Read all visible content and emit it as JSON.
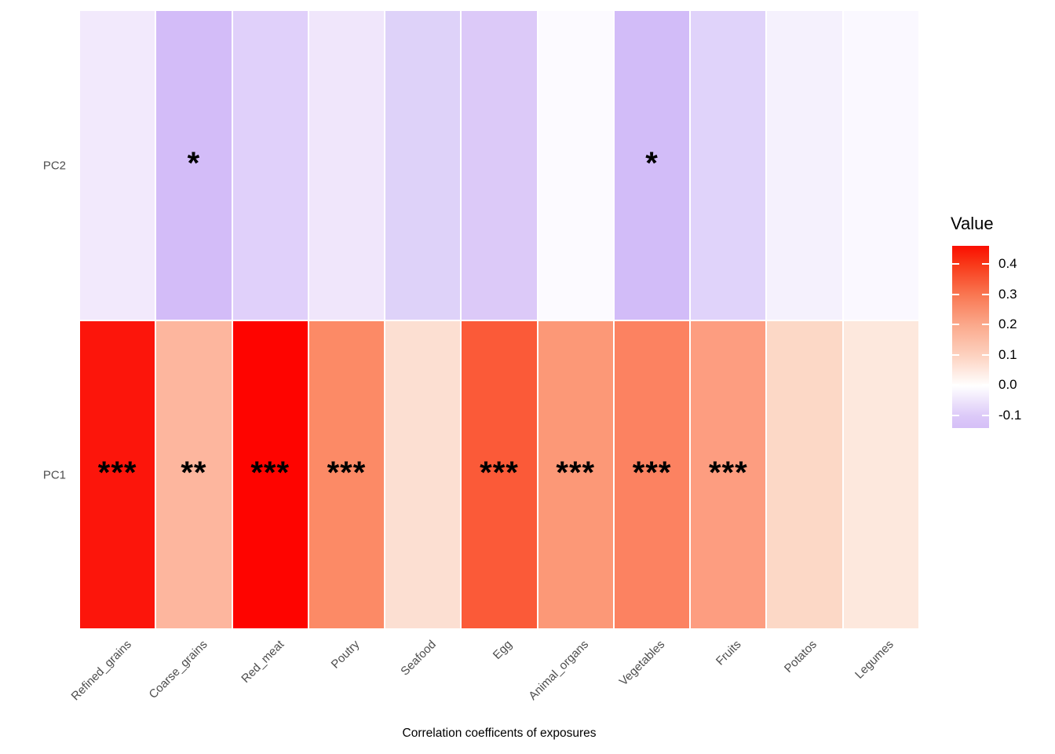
{
  "chart_data": {
    "type": "heatmap",
    "title": "",
    "xlabel": "Correlation coefficents of exposures",
    "ylabel": "",
    "x_categories": [
      "Refined_grains",
      "Coarse_grains",
      "Red_meat",
      "Poutry",
      "Seafood",
      "Egg",
      "Animal_organs",
      "Vegetables",
      "Fruits",
      "Potatos",
      "Legumes"
    ],
    "y_categories": [
      "PC2",
      "PC1"
    ],
    "grid": false,
    "legend_position": "right",
    "rows": [
      {
        "name": "PC2",
        "values": [
          -0.04,
          -0.14,
          -0.095,
          -0.045,
          -0.095,
          -0.1,
          -0.01,
          -0.14,
          -0.09,
          -0.03,
          -0.012
        ],
        "colors": [
          "#f2e9fc",
          "#d3bcf8",
          "#e0d0fa",
          "#f0e6fb",
          "#ded2f9",
          "#dcc9f8",
          "#fcfaff",
          "#d2bcf8",
          "#e0d3fa",
          "#f5f1fd",
          "#faf8ff"
        ],
        "significance": [
          "",
          "*",
          "",
          "",
          "",
          "",
          "",
          "*",
          "",
          "",
          ""
        ]
      },
      {
        "name": "PC1",
        "values": [
          0.44,
          0.19,
          0.46,
          0.28,
          0.095,
          0.34,
          0.25,
          0.29,
          0.24,
          0.11,
          0.07
        ],
        "colors": [
          "#fc150b",
          "#fdb69e",
          "#fe0400",
          "#fc8a66",
          "#fcdfd2",
          "#fb5a38",
          "#fc9877",
          "#fc8261",
          "#fd9d80",
          "#fcd8c6",
          "#fde8dd"
        ],
        "significance": [
          "***",
          "**",
          "***",
          "***",
          "",
          "***",
          "***",
          "***",
          "***",
          "",
          ""
        ]
      }
    ],
    "legend": {
      "title": "Value",
      "tick_labels": [
        "0.4",
        "0.3",
        "0.2",
        "0.1",
        "0.0",
        "-0.1"
      ],
      "tick_values": [
        0.4,
        0.3,
        0.2,
        0.1,
        0.0,
        -0.1
      ],
      "domain": [
        -0.142,
        0.46
      ],
      "gradient_stops": [
        {
          "pos": 0.0,
          "color": "#fa0e00"
        },
        {
          "pos": 0.103,
          "color": "#f93919"
        },
        {
          "pos": 0.27,
          "color": "#f97752"
        },
        {
          "pos": 0.436,
          "color": "#fba98c"
        },
        {
          "pos": 0.603,
          "color": "#fdd2c0"
        },
        {
          "pos": 0.769,
          "color": "#ffffff"
        },
        {
          "pos": 0.935,
          "color": "#dcc9f8"
        },
        {
          "pos": 1.0,
          "color": "#d5bff7"
        }
      ]
    }
  }
}
